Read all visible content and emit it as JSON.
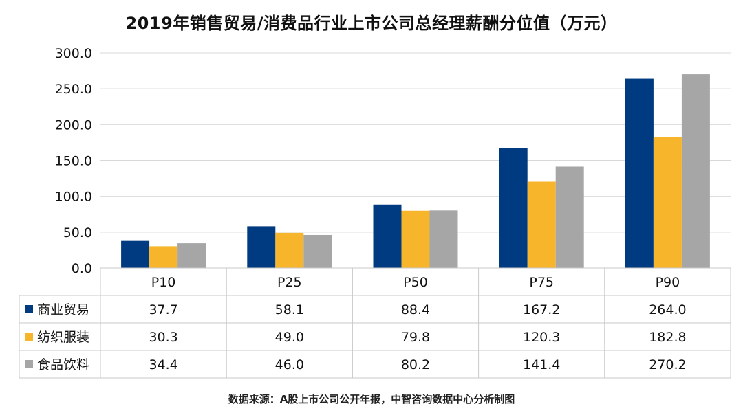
{
  "title": "2019年销售贸易/消费品行业上市公司总经理薪酬分位值（万元）",
  "source": "数据来源：A股上市公司公开年报，中智咨询数据中心分析制图",
  "colors": {
    "grid": "#d9d9d9",
    "table_border": "#c8c8c8"
  },
  "chart_data": {
    "type": "bar",
    "title": "2019年销售贸易/消费品行业上市公司总经理薪酬分位值（万元）",
    "categories": [
      "P10",
      "P25",
      "P50",
      "P75",
      "P90"
    ],
    "y_ticks": [
      "300.0",
      "250.0",
      "200.0",
      "150.0",
      "100.0",
      "50.0",
      "0.0"
    ],
    "ylim": [
      0,
      300
    ],
    "grid": true,
    "legend": "data-table-left",
    "series": [
      {
        "name": "商业贸易",
        "color": "#003a80",
        "values": [
          37.7,
          58.1,
          88.4,
          167.2,
          264.0
        ],
        "labels": [
          "37.7",
          "58.1",
          "88.4",
          "167.2",
          "264.0"
        ]
      },
      {
        "name": "纺织服装",
        "color": "#f7b52c",
        "values": [
          30.3,
          49.0,
          79.8,
          120.3,
          182.8
        ],
        "labels": [
          "30.3",
          "49.0",
          "79.8",
          "120.3",
          "182.8"
        ]
      },
      {
        "name": "食品饮料",
        "color": "#a6a6a6",
        "values": [
          34.4,
          46.0,
          80.2,
          141.4,
          270.2
        ],
        "labels": [
          "34.4",
          "46.0",
          "80.2",
          "141.4",
          "270.2"
        ]
      }
    ]
  }
}
